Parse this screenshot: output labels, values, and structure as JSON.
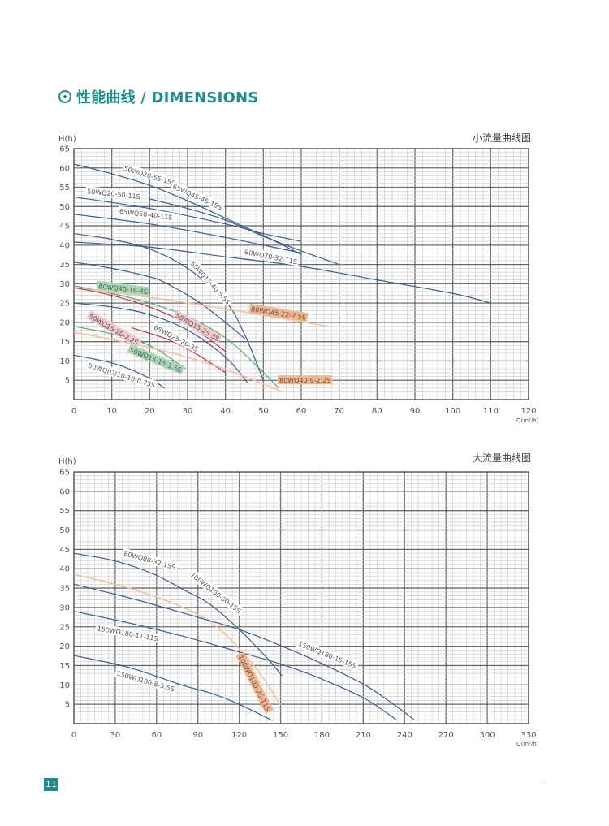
{
  "header": {
    "icon": "circle-dot-icon",
    "title": "性能曲线 / DIMENSIONS",
    "color": "#1f8d8c"
  },
  "page_number": "11",
  "chart_data": [
    {
      "type": "line",
      "title": "小流量曲线图",
      "ylabel": "H(h)",
      "xlabel": "Q(m³/h)",
      "xlim": [
        0,
        120
      ],
      "ylim": [
        0,
        65
      ],
      "x_ticks": [
        "0",
        "10",
        "20",
        "30",
        "40",
        "50",
        "60",
        "70",
        "80",
        "90",
        "100",
        "110",
        "120"
      ],
      "y_ticks": [
        "5",
        "10",
        "15",
        "20",
        "25",
        "30",
        "35",
        "40",
        "45",
        "50",
        "55",
        "60",
        "65"
      ],
      "grid": true,
      "series": [
        {
          "name": "50WQ20-55-15S",
          "color": "#3d5f8f",
          "label_bg": "#ffffff",
          "points": [
            [
              0,
              61
            ],
            [
              10,
              58.5
            ],
            [
              20,
              55.5
            ],
            [
              30,
              51.5
            ],
            [
              40,
              47
            ],
            [
              50,
              42.5
            ],
            [
              60,
              37.6
            ]
          ]
        },
        {
          "name": "65WQ45-45-15S",
          "color": "#3d5f8f",
          "label_bg": "#ffffff",
          "points": [
            [
              20,
              52
            ],
            [
              30,
              49.5
            ],
            [
              40,
              46.5
            ],
            [
              50,
              42.3
            ],
            [
              60,
              38.5
            ],
            [
              70,
              35
            ]
          ]
        },
        {
          "name": "50WQ20-50-11S",
          "color": "#3d5f8f",
          "label_bg": "#ffffff",
          "points": [
            [
              0,
              52.5
            ],
            [
              20,
              49.5
            ],
            [
              40,
              45.5
            ],
            [
              50,
              43
            ],
            [
              60,
              41
            ]
          ]
        },
        {
          "name": "65WQ50-40-11S",
          "color": "#3d5f8f",
          "label_bg": "#ffffff",
          "points": [
            [
              0,
              48
            ],
            [
              20,
              45.5
            ],
            [
              40,
              42
            ],
            [
              50,
              40
            ],
            [
              60,
              38
            ]
          ]
        },
        {
          "name": "80WQ70-32-11S",
          "color": "#3d5f8f",
          "label_bg": "#ffffff",
          "points": [
            [
              0,
              40.8
            ],
            [
              20,
              39.5
            ],
            [
              40,
              37
            ],
            [
              60,
              34.5
            ],
            [
              80,
              31
            ],
            [
              100,
              27.5
            ],
            [
              110,
              25
            ]
          ]
        },
        {
          "name": "50WQ15-40-5.5S",
          "color": "#3d5f8f",
          "label_bg": "#ffffff",
          "points": [
            [
              0,
              43
            ],
            [
              10,
              41.5
            ],
            [
              20,
              39
            ],
            [
              30,
              34
            ],
            [
              40,
              25.5
            ],
            [
              45,
              17
            ],
            [
              50,
              5
            ]
          ]
        },
        {
          "name": "",
          "color": "#3d5f8f",
          "label_bg": "",
          "points": [
            [
              0,
              35.6
            ],
            [
              10,
              34
            ],
            [
              20,
              31.8
            ],
            [
              24,
              30.3
            ],
            [
              32.6,
              25.5
            ],
            [
              40,
              20
            ],
            [
              45.2,
              15.7
            ]
          ]
        },
        {
          "name": "80WQ40-18-4S",
          "color": "#5aa87a",
          "label_bg": "#a6d9b6",
          "points": [
            [
              0,
              29.5
            ],
            [
              10,
              27.5
            ],
            [
              20,
              25
            ],
            [
              30,
              21.5
            ],
            [
              40,
              16
            ],
            [
              48,
              9
            ],
            [
              54,
              3
            ]
          ]
        },
        {
          "name": "80WQ45-22-7.5S",
          "color": "#f2c2a0",
          "label_bg": "#f2b48a",
          "points": [
            [
              0,
              29
            ],
            [
              20,
              26.5
            ],
            [
              40,
              23.5
            ],
            [
              55,
              21
            ],
            [
              67,
              19
            ]
          ]
        },
        {
          "name": "50WQ15-25-3S",
          "color": "#c0394b",
          "label_bg": "#f1c6cc",
          "points": [
            [
              0,
              29
            ],
            [
              10,
              27
            ],
            [
              20,
              24
            ],
            [
              30,
              19.5
            ],
            [
              40,
              12.5
            ]
          ]
        },
        {
          "name": "65WQ25-20-3S",
          "color": "#3d5f8f",
          "label_bg": "#ffffff",
          "points": [
            [
              0,
              25
            ],
            [
              10,
              24
            ],
            [
              20,
              22
            ],
            [
              30,
              18
            ],
            [
              40,
              11
            ],
            [
              46,
              4.2
            ]
          ]
        },
        {
          "name": "50WQ15-20-2.2S",
          "color": "#c0394b",
          "label_bg": "#f1c6cc",
          "points": [
            [
              15.2,
              18.6
            ],
            [
              25,
              15.5
            ],
            [
              32,
              12
            ],
            [
              40,
              7
            ]
          ]
        },
        {
          "name": "50WQ15-15-1.5S",
          "color": "#5aa87a",
          "label_bg": "#a6d9b6",
          "points": [
            [
              0,
              19
            ],
            [
              10,
              17
            ],
            [
              20,
              14
            ],
            [
              29.5,
              8
            ]
          ]
        },
        {
          "name": "80WQ40-9-2.2S",
          "color": "#f2c2a0",
          "label_bg": "#f2b48a",
          "points": [
            [
              0,
              17.5
            ],
            [
              20,
              13.5
            ],
            [
              35,
              9.5
            ],
            [
              45,
              6
            ],
            [
              55,
              2
            ]
          ]
        },
        {
          "name": "50WQ(D)10-10-0.75S",
          "color": "#3d5f8f",
          "label_bg": "#ffffff",
          "points": [
            [
              0,
              11.5
            ],
            [
              10,
              9.5
            ],
            [
              18,
              6.5
            ],
            [
              24,
              3
            ]
          ]
        }
      ]
    },
    {
      "type": "line",
      "title": "大流量曲线图",
      "ylabel": "H(h)",
      "xlabel": "Q(m³/h)",
      "xlim": [
        0,
        330
      ],
      "ylim": [
        0,
        65
      ],
      "x_ticks": [
        "0",
        "30",
        "60",
        "90",
        "120",
        "150",
        "180",
        "210",
        "240",
        "270",
        "300",
        "330"
      ],
      "y_ticks": [
        "5",
        "10",
        "15",
        "20",
        "25",
        "30",
        "35",
        "40",
        "45",
        "50",
        "55",
        "60",
        "65"
      ],
      "grid": true,
      "series": [
        {
          "name": "80WQ80-32-15S",
          "color": "#3d5f8f",
          "label_bg": "#ffffff",
          "points": [
            [
              0,
              44
            ],
            [
              30,
              42
            ],
            [
              58,
              38.6
            ],
            [
              80,
              34.5
            ],
            [
              98,
              31
            ],
            [
              120,
              24.3
            ],
            [
              140,
              17
            ],
            [
              151,
              12.4
            ]
          ]
        },
        {
          "name": "100WQ100-30-15S",
          "color": "#3d5f8f",
          "label_bg": "#ffffff",
          "points": []
        },
        {
          "name": "100WQ100-25-11S",
          "color": "#f2c2a0",
          "label_bg": "#f2b48a",
          "points": [
            [
              0,
              38.6
            ],
            [
              40,
              35
            ],
            [
              78,
              30.2
            ],
            [
              100,
              26
            ],
            [
              117,
              20.5
            ],
            [
              135,
              13
            ],
            [
              150,
              4.8
            ]
          ]
        },
        {
          "name": "150WQ180-15-15S",
          "color": "#3d5f8f",
          "label_bg": "#ffffff",
          "points": [
            [
              0,
              36
            ],
            [
              40,
              32.5
            ],
            [
              80,
              28.5
            ],
            [
              120,
              24.3
            ],
            [
              151,
              20
            ],
            [
              180,
              15.5
            ],
            [
              211,
              10
            ],
            [
              230,
              5.5
            ],
            [
              247,
              1
            ]
          ]
        },
        {
          "name": "150WQ180-11-11S",
          "color": "#3d5f8f",
          "label_bg": "#ffffff",
          "points": [
            [
              0,
              29
            ],
            [
              40,
              26
            ],
            [
              80,
              22.5
            ],
            [
              120,
              18.5
            ],
            [
              151,
              15.3
            ],
            [
              180,
              11.5
            ],
            [
              211,
              6.5
            ],
            [
              234,
              1
            ]
          ]
        },
        {
          "name": "150WQ100-8-5.5S",
          "color": "#3d5f8f",
          "label_bg": "#ffffff",
          "points": [
            [
              0,
              17.6
            ],
            [
              40,
              14.5
            ],
            [
              78,
              10
            ],
            [
              100,
              7.8
            ],
            [
              120,
              5
            ],
            [
              144,
              0.8
            ]
          ]
        }
      ]
    }
  ]
}
